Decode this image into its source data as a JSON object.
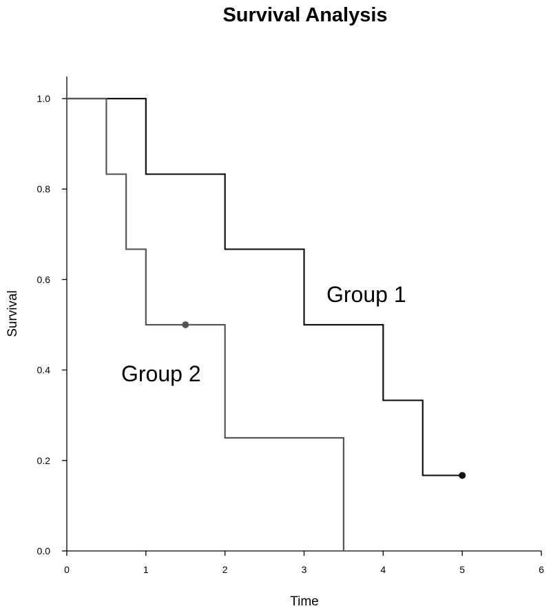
{
  "chart_data": {
    "type": "line",
    "step": true,
    "title": "Survival Analysis",
    "xlabel": "Time",
    "ylabel": "Survival",
    "xlim": [
      0,
      6
    ],
    "ylim": [
      0,
      1
    ],
    "xticks": [
      0,
      1,
      2,
      3,
      4,
      5,
      6
    ],
    "xtick_labels": [
      "0",
      "1",
      "2",
      "3",
      "4",
      "5",
      "6"
    ],
    "yticks": [
      0,
      0.2,
      0.4,
      0.6,
      0.8,
      1
    ],
    "ytick_labels": [
      "0.0",
      "0.2",
      "0.4",
      "0.6",
      "0.8",
      "1.0"
    ],
    "grid": false,
    "legend": "none",
    "series": [
      {
        "name": "Group 1",
        "color": "#111111",
        "x": [
          0,
          1,
          2,
          3,
          4,
          4.5,
          5
        ],
        "y": [
          1.0,
          0.833,
          0.667,
          0.5,
          0.333,
          0.167,
          0.167
        ],
        "censored": [
          {
            "x": 5,
            "y": 0.167
          }
        ]
      },
      {
        "name": "Group 2",
        "color": "#555555",
        "x": [
          0,
          0.5,
          0.75,
          1,
          2,
          3.5
        ],
        "y": [
          1.0,
          0.833,
          0.667,
          0.5,
          0.25,
          0
        ],
        "censored": [
          {
            "x": 1.5,
            "y": 0.5
          }
        ]
      }
    ],
    "annotations": [
      "Group 1",
      "Group 2"
    ]
  }
}
